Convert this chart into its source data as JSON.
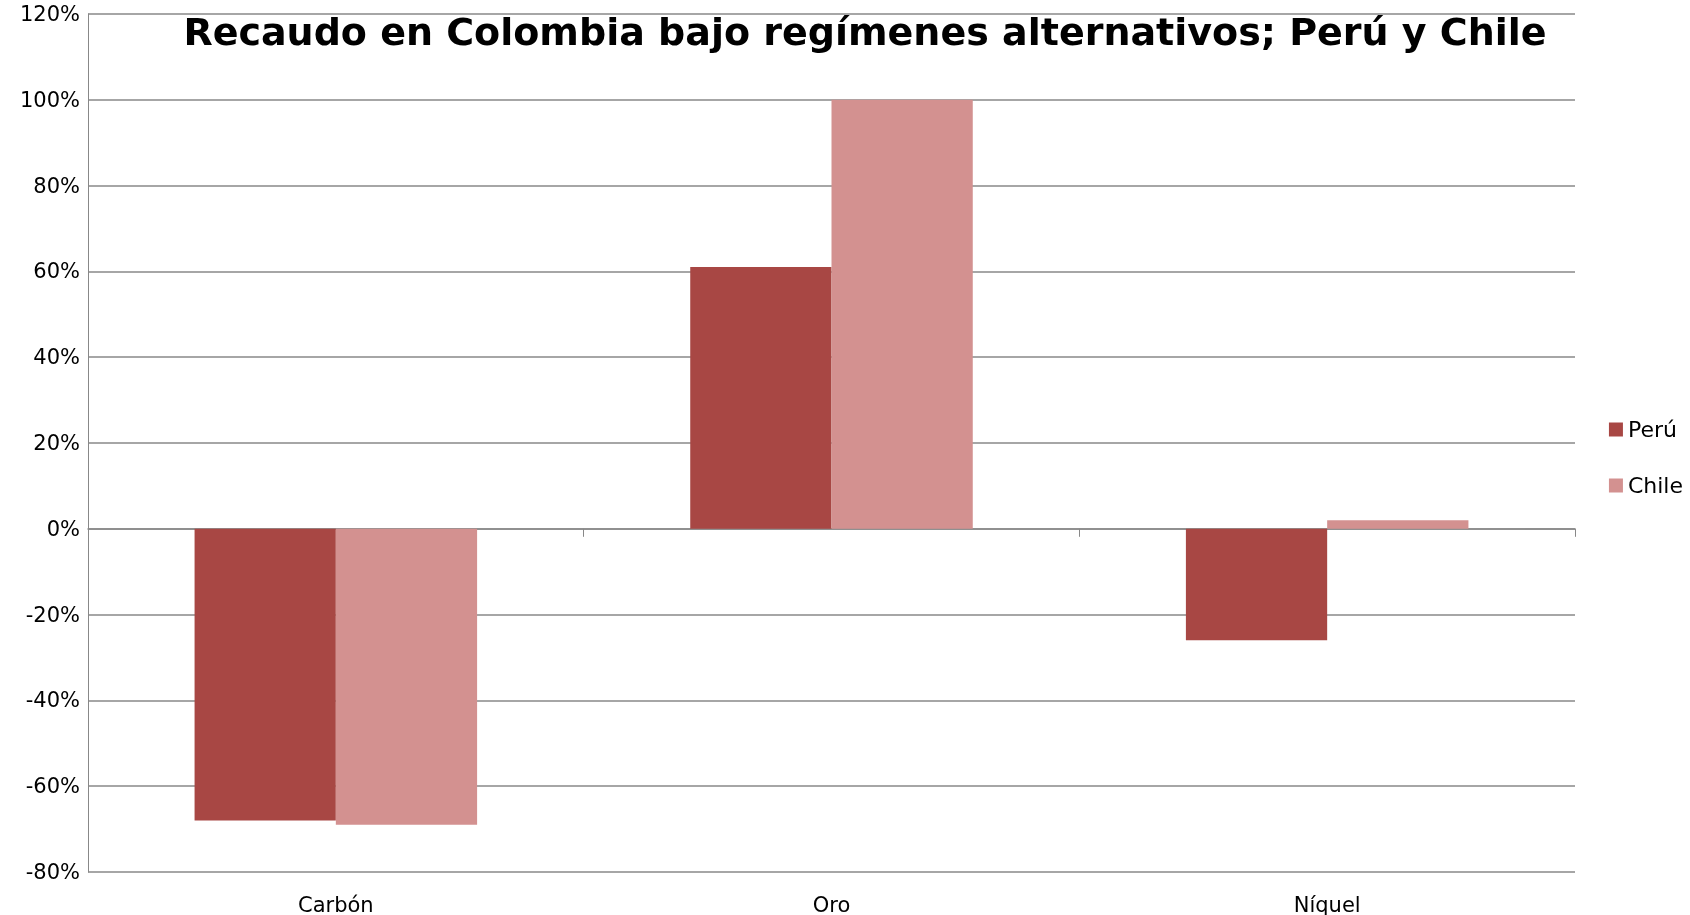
{
  "chart_data": {
    "type": "bar",
    "title": "Recaudo en Colombia bajo regímenes alternativos; Perú y Chile",
    "categories": [
      "Carbón",
      "Oro",
      "Níquel"
    ],
    "series": [
      {
        "name": "Perú",
        "color": "#a84744",
        "values": [
          -68,
          61,
          -26
        ]
      },
      {
        "name": "Chile",
        "color": "#d39190",
        "values": [
          -69,
          100,
          2
        ]
      }
    ],
    "ylim": [
      -80,
      120
    ],
    "yticks": [
      {
        "value": -80,
        "label": "-80%"
      },
      {
        "value": -60,
        "label": "-60%"
      },
      {
        "value": -40,
        "label": "-40%"
      },
      {
        "value": -20,
        "label": "-20%"
      },
      {
        "value": 0,
        "label": "0%"
      },
      {
        "value": 20,
        "label": "20%"
      },
      {
        "value": 40,
        "label": "40%"
      },
      {
        "value": 60,
        "label": "60%"
      },
      {
        "value": 80,
        "label": "80%"
      },
      {
        "value": 100,
        "label": "100%"
      },
      {
        "value": 120,
        "label": "120%"
      }
    ],
    "grid": "y",
    "legend": "right"
  }
}
